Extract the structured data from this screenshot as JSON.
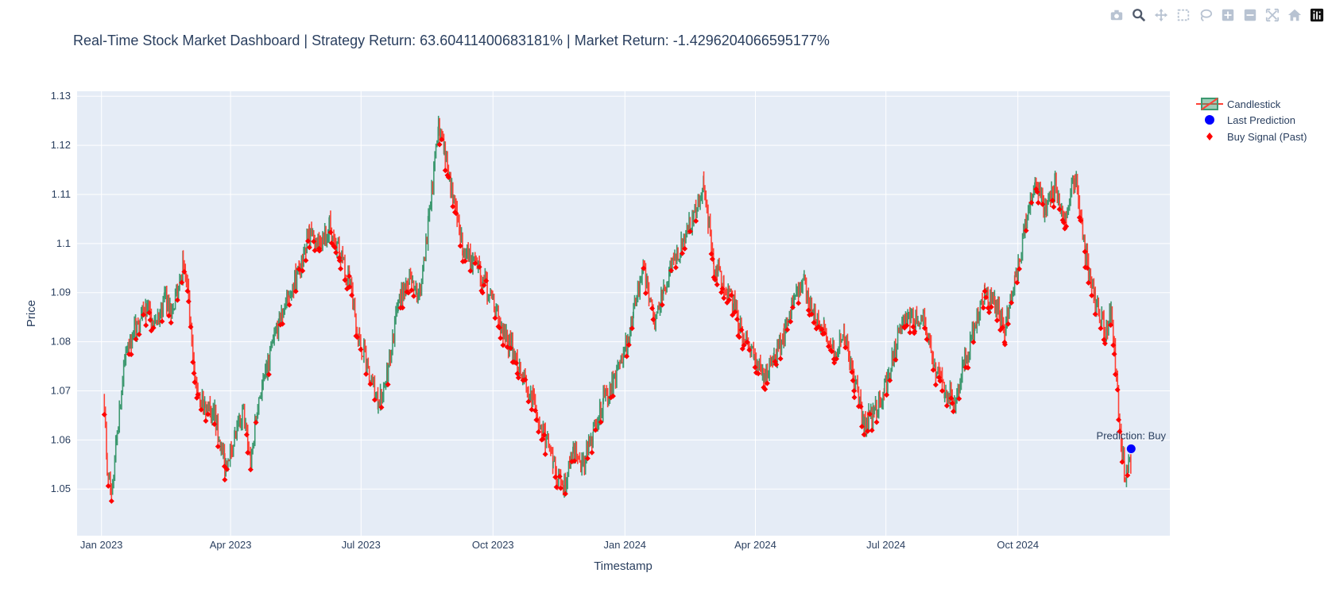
{
  "chart_data": {
    "type": "candlestick",
    "title": "Real-Time Stock Market Dashboard | Strategy Return: 63.60411400683181% | Market Return: -1.4296204066595177%",
    "xlabel": "Timestamp",
    "ylabel": "Price",
    "x_ticks": [
      "Jan 2023",
      "Apr 2023",
      "Jul 2023",
      "Oct 2023",
      "Jan 2024",
      "Apr 2024",
      "Jul 2024",
      "Oct 2024"
    ],
    "y_ticks": [
      "1.05",
      "1.06",
      "1.07",
      "1.08",
      "1.09",
      "1.1",
      "1.11",
      "1.12",
      "1.13"
    ],
    "xlim": [
      "2022-12-15",
      "2025-01-15"
    ],
    "ylim": [
      1.0405,
      1.131
    ],
    "grid": true,
    "legend_position": "top-right",
    "colors": {
      "increasing": "#3D9970",
      "decreasing": "#FF4136",
      "prediction": "#0000FF",
      "buy_signal": "#FF0000",
      "plot_bg": "#E5ECF6",
      "text": "#2a3f5f"
    },
    "legend": [
      "Candlestick",
      "Last Prediction",
      "Buy Signal (Past)"
    ],
    "anchors": [
      [
        "2023-01-03",
        1.068
      ],
      [
        "2023-01-05",
        1.052
      ],
      [
        "2023-01-08",
        1.049
      ],
      [
        "2023-01-12",
        1.062
      ],
      [
        "2023-01-18",
        1.078
      ],
      [
        "2023-01-25",
        1.083
      ],
      [
        "2023-02-01",
        1.087
      ],
      [
        "2023-02-07",
        1.082
      ],
      [
        "2023-02-14",
        1.089
      ],
      [
        "2023-02-20",
        1.086
      ],
      [
        "2023-02-27",
        1.096
      ],
      [
        "2023-03-02",
        1.09
      ],
      [
        "2023-03-07",
        1.072
      ],
      [
        "2023-03-14",
        1.067
      ],
      [
        "2023-03-21",
        1.065
      ],
      [
        "2023-03-28",
        1.055
      ],
      [
        "2023-04-04",
        1.06
      ],
      [
        "2023-04-10",
        1.066
      ],
      [
        "2023-04-15",
        1.055
      ],
      [
        "2023-04-20",
        1.068
      ],
      [
        "2023-04-27",
        1.075
      ],
      [
        "2023-05-05",
        1.085
      ],
      [
        "2023-05-12",
        1.09
      ],
      [
        "2023-05-19",
        1.095
      ],
      [
        "2023-05-26",
        1.102
      ],
      [
        "2023-06-02",
        1.1
      ],
      [
        "2023-06-09",
        1.104
      ],
      [
        "2023-06-16",
        1.098
      ],
      [
        "2023-06-23",
        1.092
      ],
      [
        "2023-06-30",
        1.08
      ],
      [
        "2023-07-06",
        1.075
      ],
      [
        "2023-07-13",
        1.067
      ],
      [
        "2023-07-20",
        1.075
      ],
      [
        "2023-07-27",
        1.088
      ],
      [
        "2023-08-03",
        1.093
      ],
      [
        "2023-08-10",
        1.088
      ],
      [
        "2023-08-17",
        1.104
      ],
      [
        "2023-08-24",
        1.124
      ],
      [
        "2023-08-28",
        1.12
      ],
      [
        "2023-09-03",
        1.109
      ],
      [
        "2023-09-10",
        1.1
      ],
      [
        "2023-09-17",
        1.096
      ],
      [
        "2023-09-24",
        1.093
      ],
      [
        "2023-10-01",
        1.088
      ],
      [
        "2023-10-08",
        1.082
      ],
      [
        "2023-10-15",
        1.078
      ],
      [
        "2023-10-22",
        1.073
      ],
      [
        "2023-10-29",
        1.068
      ],
      [
        "2023-11-05",
        1.062
      ],
      [
        "2023-11-12",
        1.055
      ],
      [
        "2023-11-19",
        1.05
      ],
      [
        "2023-11-26",
        1.058
      ],
      [
        "2023-12-03",
        1.055
      ],
      [
        "2023-12-10",
        1.062
      ],
      [
        "2023-12-17",
        1.068
      ],
      [
        "2023-12-24",
        1.072
      ],
      [
        "2023-12-31",
        1.077
      ],
      [
        "2024-01-07",
        1.086
      ],
      [
        "2024-01-14",
        1.095
      ],
      [
        "2024-01-21",
        1.084
      ],
      [
        "2024-01-28",
        1.09
      ],
      [
        "2024-02-04",
        1.096
      ],
      [
        "2024-02-11",
        1.101
      ],
      [
        "2024-02-18",
        1.106
      ],
      [
        "2024-02-25",
        1.112
      ],
      [
        "2024-03-03",
        1.095
      ],
      [
        "2024-03-10",
        1.092
      ],
      [
        "2024-03-17",
        1.088
      ],
      [
        "2024-03-24",
        1.08
      ],
      [
        "2024-03-31",
        1.078
      ],
      [
        "2024-04-07",
        1.073
      ],
      [
        "2024-04-14",
        1.076
      ],
      [
        "2024-04-21",
        1.082
      ],
      [
        "2024-04-28",
        1.088
      ],
      [
        "2024-05-05",
        1.092
      ],
      [
        "2024-05-12",
        1.085
      ],
      [
        "2024-05-19",
        1.082
      ],
      [
        "2024-05-26",
        1.078
      ],
      [
        "2024-06-02",
        1.082
      ],
      [
        "2024-06-09",
        1.072
      ],
      [
        "2024-06-16",
        1.063
      ],
      [
        "2024-06-23",
        1.066
      ],
      [
        "2024-06-30",
        1.07
      ],
      [
        "2024-07-07",
        1.078
      ],
      [
        "2024-07-14",
        1.086
      ],
      [
        "2024-07-21",
        1.084
      ],
      [
        "2024-07-28",
        1.085
      ],
      [
        "2024-08-04",
        1.075
      ],
      [
        "2024-08-11",
        1.07
      ],
      [
        "2024-08-18",
        1.068
      ],
      [
        "2024-08-25",
        1.076
      ],
      [
        "2024-09-01",
        1.083
      ],
      [
        "2024-09-08",
        1.09
      ],
      [
        "2024-09-15",
        1.088
      ],
      [
        "2024-09-22",
        1.083
      ],
      [
        "2024-09-29",
        1.092
      ],
      [
        "2024-10-06",
        1.104
      ],
      [
        "2024-10-13",
        1.114
      ],
      [
        "2024-10-20",
        1.106
      ],
      [
        "2024-10-27",
        1.112
      ],
      [
        "2024-11-03",
        1.104
      ],
      [
        "2024-11-10",
        1.114
      ],
      [
        "2024-11-17",
        1.098
      ],
      [
        "2024-11-24",
        1.088
      ],
      [
        "2024-12-01",
        1.082
      ],
      [
        "2024-12-05",
        1.086
      ],
      [
        "2024-12-08",
        1.075
      ],
      [
        "2024-12-12",
        1.06
      ],
      [
        "2024-12-15",
        1.052
      ],
      [
        "2024-12-19",
        1.056
      ]
    ],
    "last_prediction": {
      "x": "2024-12-19",
      "y": 1.0582,
      "label": "Prediction: Buy"
    }
  },
  "modebar": {
    "icons": [
      "camera-icon",
      "zoom-icon",
      "pan-icon",
      "box-select-icon",
      "lasso-icon",
      "zoom-in-icon",
      "zoom-out-icon",
      "autoscale-icon",
      "reset-axes-icon",
      "plotly-logo-icon"
    ]
  }
}
